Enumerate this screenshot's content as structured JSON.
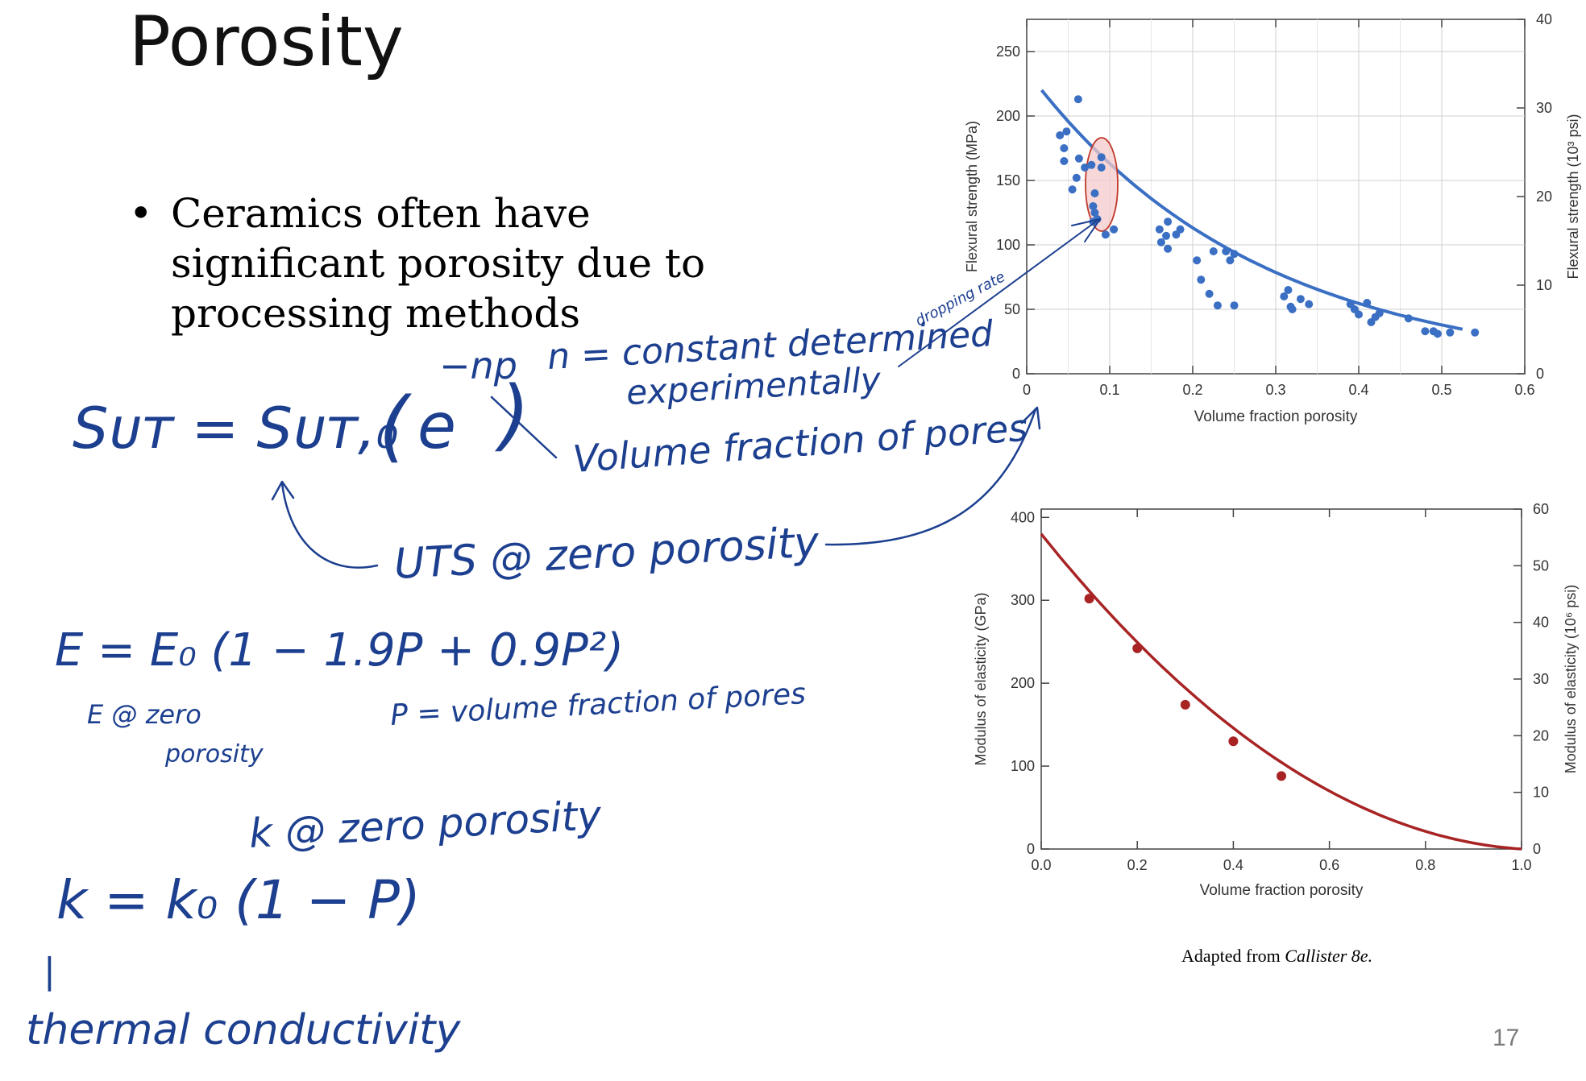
{
  "slide": {
    "title": "Porosity",
    "bullet_marker": "•",
    "bullet": "Ceramics often have significant porosity due to processing methods",
    "citation_prefix": "Adapted from ",
    "citation_source": "Callister 8e.",
    "page_number": "17"
  },
  "annotations": {
    "uts_formula_lhs": "Sᴜᴛ = Sᴜᴛ,₀",
    "uts_formula_paren_open": "(",
    "uts_formula_e": "e",
    "uts_formula_exp": "−np",
    "uts_formula_paren_close": ")",
    "n_note_line1": "n = constant determined",
    "n_note_line2": "experimentally",
    "dropping_rate": "dropping rate",
    "pore_note": "Volume fraction of pores",
    "uts_zero": "UTS @ zero porosity",
    "e_formula": "E = E₀ (1 − 1.9P + 0.9P²)",
    "e_zero_line1": "E @ zero",
    "e_zero_line2": "porosity",
    "p_note": "P = volume fraction of pores",
    "k_zero": "k @ zero porosity",
    "k_formula": "k = k₀ (1 − P)",
    "k_bar": "|",
    "thermal": "thermal conductivity"
  },
  "colors": {
    "ink": "#1c3f8f",
    "flexural_series": "#3a6fc4",
    "modulus_series": "#a82424",
    "highlight_fill": "#f4c9c9",
    "highlight_stroke": "#c0392b"
  },
  "chart_data": [
    {
      "type": "scatter",
      "xlabel": "Volume fraction porosity",
      "ylabel": "Flexural strength (MPa)",
      "ylabel_right": "Flexural strength (10³ psi)",
      "xlim": [
        0,
        0.6
      ],
      "ylim": [
        0,
        275
      ],
      "ylim_right": [
        0,
        40
      ],
      "x_ticks": [
        0,
        0.1,
        0.2,
        0.3,
        0.4,
        0.5,
        0.6
      ],
      "x_tick_labels": [
        "0",
        "0.1",
        "0.2",
        "0.3",
        "0.4",
        "0.5",
        "0.6"
      ],
      "y_ticks": [
        0,
        50,
        100,
        150,
        200,
        250
      ],
      "y_tick_labels": [
        "0",
        "50",
        "100",
        "150",
        "200",
        "250"
      ],
      "y_right_ticks": [
        0,
        10,
        20,
        30,
        40
      ],
      "y_right_tick_labels": [
        "0",
        "10",
        "20",
        "30",
        "40"
      ],
      "grid": true,
      "points": [
        [
          0.04,
          185
        ],
        [
          0.045,
          175
        ],
        [
          0.045,
          165
        ],
        [
          0.048,
          188
        ],
        [
          0.055,
          143
        ],
        [
          0.06,
          152
        ],
        [
          0.062,
          213
        ],
        [
          0.063,
          167
        ],
        [
          0.07,
          160
        ],
        [
          0.078,
          162
        ],
        [
          0.082,
          140
        ],
        [
          0.08,
          130
        ],
        [
          0.082,
          125
        ],
        [
          0.08,
          118
        ],
        [
          0.085,
          120
        ],
        [
          0.09,
          160
        ],
        [
          0.09,
          168
        ],
        [
          0.095,
          108
        ],
        [
          0.105,
          112
        ],
        [
          0.16,
          112
        ],
        [
          0.162,
          102
        ],
        [
          0.168,
          107
        ],
        [
          0.17,
          118
        ],
        [
          0.17,
          97
        ],
        [
          0.18,
          108
        ],
        [
          0.185,
          112
        ],
        [
          0.205,
          88
        ],
        [
          0.21,
          73
        ],
        [
          0.22,
          62
        ],
        [
          0.225,
          95
        ],
        [
          0.23,
          53
        ],
        [
          0.24,
          95
        ],
        [
          0.245,
          88
        ],
        [
          0.25,
          93
        ],
        [
          0.25,
          53
        ],
        [
          0.31,
          60
        ],
        [
          0.315,
          65
        ],
        [
          0.318,
          52
        ],
        [
          0.32,
          50
        ],
        [
          0.33,
          58
        ],
        [
          0.34,
          54
        ],
        [
          0.39,
          54
        ],
        [
          0.395,
          50
        ],
        [
          0.4,
          46
        ],
        [
          0.41,
          55
        ],
        [
          0.415,
          40
        ],
        [
          0.42,
          44
        ],
        [
          0.425,
          47
        ],
        [
          0.46,
          43
        ],
        [
          0.48,
          33
        ],
        [
          0.49,
          33
        ],
        [
          0.495,
          31
        ],
        [
          0.51,
          32
        ],
        [
          0.54,
          32
        ]
      ],
      "fit": {
        "s0": 235,
        "n": 3.65,
        "x_range": [
          0.018,
          0.525
        ]
      }
    },
    {
      "type": "scatter",
      "xlabel": "Volume fraction porosity",
      "ylabel": "Modulus of elasticity (GPa)",
      "ylabel_right": "Modulus of elasticity (10⁶ psi)",
      "xlim": [
        0,
        1.0
      ],
      "ylim": [
        0,
        410
      ],
      "ylim_right": [
        0,
        60
      ],
      "x_ticks": [
        0,
        0.2,
        0.4,
        0.6,
        0.8,
        1.0
      ],
      "x_tick_labels": [
        "0.0",
        "0.2",
        "0.4",
        "0.6",
        "0.8",
        "1.0"
      ],
      "y_ticks": [
        0,
        100,
        200,
        300,
        400
      ],
      "y_tick_labels": [
        "0",
        "100",
        "200",
        "300",
        "400"
      ],
      "y_right_ticks": [
        0,
        10,
        20,
        30,
        40,
        50,
        60
      ],
      "y_right_tick_labels": [
        "0",
        "10",
        "20",
        "30",
        "40",
        "50",
        "60"
      ],
      "grid": false,
      "points": [
        [
          0.1,
          302
        ],
        [
          0.2,
          242
        ],
        [
          0.3,
          174
        ],
        [
          0.4,
          130
        ],
        [
          0.5,
          88
        ]
      ],
      "fit": {
        "e0": 380,
        "x_range": [
          0,
          1.0
        ]
      }
    }
  ]
}
